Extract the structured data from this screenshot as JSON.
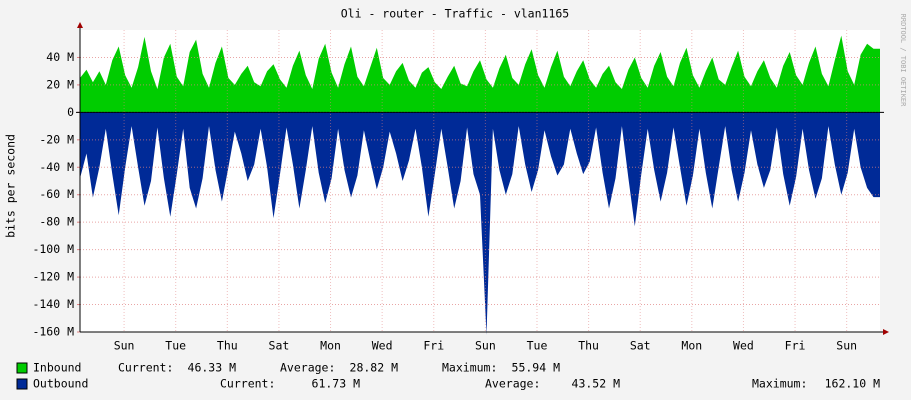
{
  "chart_data": {
    "type": "area",
    "title": "Oli - router - Traffic - vlan1165",
    "ylabel": "bits per second",
    "side_text": "RRDTOOL / TOBI OETIKER",
    "x": [
      0,
      6,
      12,
      18,
      24,
      30,
      36,
      42,
      48,
      54,
      60,
      66,
      72,
      78,
      84,
      90,
      96,
      102,
      108,
      114,
      120,
      126,
      132,
      138,
      144,
      150,
      156,
      162,
      168,
      174,
      180,
      186,
      192,
      198,
      204,
      210,
      216,
      222,
      228,
      234,
      240,
      246,
      252,
      258,
      264,
      270,
      276,
      282,
      288,
      294,
      300,
      306,
      312,
      318,
      324,
      330,
      336,
      342,
      348,
      354,
      360,
      366,
      372,
      378,
      384,
      390,
      396,
      402,
      408,
      414,
      420,
      426,
      432,
      438,
      444,
      450,
      456,
      462,
      468,
      474,
      480,
      486,
      492,
      498,
      504,
      510,
      516,
      522,
      528,
      534,
      540,
      546,
      552,
      558,
      564,
      570,
      576,
      582,
      588,
      594,
      600,
      606,
      612,
      618,
      624,
      630,
      636,
      642,
      648,
      654,
      660,
      666,
      672,
      678,
      684,
      690,
      696,
      702,
      708,
      714,
      720,
      726,
      732,
      738
    ],
    "xlim": [
      0,
      744
    ],
    "xticks": [
      {
        "value": 41,
        "label": "Sun"
      },
      {
        "value": 89,
        "label": "Tue"
      },
      {
        "value": 137,
        "label": "Thu"
      },
      {
        "value": 185,
        "label": "Sat"
      },
      {
        "value": 233,
        "label": "Mon"
      },
      {
        "value": 281,
        "label": "Wed"
      },
      {
        "value": 329,
        "label": "Fri"
      },
      {
        "value": 377,
        "label": "Sun"
      },
      {
        "value": 425,
        "label": "Tue"
      },
      {
        "value": 473,
        "label": "Thu"
      },
      {
        "value": 521,
        "label": "Sat"
      },
      {
        "value": 569,
        "label": "Mon"
      },
      {
        "value": 617,
        "label": "Wed"
      },
      {
        "value": 665,
        "label": "Fri"
      },
      {
        "value": 713,
        "label": "Sun"
      }
    ],
    "ylim": [
      -160,
      60
    ],
    "yticks": [
      {
        "value": 40,
        "label": "40 M"
      },
      {
        "value": 20,
        "label": "20 M"
      },
      0,
      {
        "value": -20,
        "label": "-20 M"
      },
      {
        "value": -40,
        "label": "-40 M"
      },
      {
        "value": -60,
        "label": "-60 M"
      },
      {
        "value": -80,
        "label": "-80 M"
      },
      {
        "value": -100,
        "label": "-100 M"
      },
      {
        "value": -120,
        "label": "-120 M"
      },
      {
        "value": -140,
        "label": "-140 M"
      },
      {
        "value": -160,
        "label": "-160 M"
      }
    ],
    "grid": true,
    "series": [
      {
        "name": "Inbound",
        "color": "#00cc00",
        "stats": [
          {
            "label": "Current:",
            "value": "46.33 M"
          },
          {
            "label": "Average:",
            "value": "28.82 M"
          },
          {
            "label": "Maximum:",
            "value": "55.94 M"
          }
        ],
        "values": [
          25,
          31,
          22,
          30,
          20,
          38,
          48,
          27,
          18,
          33,
          55,
          30,
          17,
          40,
          50,
          26,
          19,
          44,
          53,
          28,
          18,
          36,
          48,
          25,
          20,
          28,
          34,
          22,
          19,
          30,
          35,
          24,
          18,
          34,
          45,
          27,
          17,
          39,
          50,
          29,
          18,
          35,
          48,
          26,
          19,
          33,
          47,
          25,
          20,
          30,
          36,
          23,
          18,
          29,
          33,
          22,
          17,
          26,
          34,
          21,
          19,
          30,
          38,
          24,
          18,
          32,
          42,
          25,
          20,
          35,
          46,
          27,
          18,
          33,
          45,
          26,
          19,
          30,
          38,
          24,
          18,
          28,
          34,
          22,
          17,
          31,
          40,
          25,
          18,
          34,
          44,
          26,
          19,
          36,
          47,
          27,
          18,
          30,
          40,
          24,
          20,
          33,
          45,
          26,
          19,
          30,
          38,
          25,
          18,
          34,
          44,
          27,
          20,
          36,
          48,
          28,
          19,
          38,
          55.94,
          30,
          20,
          42,
          50,
          46.33
        ]
      },
      {
        "name": "Outbound",
        "color": "#002a97",
        "stats": [
          {
            "label": "Current:",
            "value": "61.73 M"
          },
          {
            "label": "Average:",
            "value": "43.52 M"
          },
          {
            "label": "Maximum:",
            "value": "162.10 M"
          }
        ],
        "values": [
          -48,
          -30,
          -62,
          -40,
          -12,
          -45,
          -75,
          -40,
          -10,
          -40,
          -68,
          -50,
          -11,
          -48,
          -76,
          -45,
          -12,
          -55,
          -70,
          -48,
          -10,
          -42,
          -65,
          -40,
          -14,
          -30,
          -50,
          -38,
          -12,
          -40,
          -77,
          -45,
          -11,
          -38,
          -70,
          -42,
          -10,
          -44,
          -66,
          -48,
          -12,
          -42,
          -62,
          -46,
          -13,
          -35,
          -56,
          -40,
          -14,
          -30,
          -50,
          -35,
          -12,
          -40,
          -76,
          -45,
          -12,
          -40,
          -70,
          -50,
          -11,
          -45,
          -60,
          -162.1,
          -12,
          -42,
          -60,
          -45,
          -10,
          -38,
          -58,
          -42,
          -13,
          -32,
          -46,
          -38,
          -12,
          -30,
          -45,
          -36,
          -11,
          -44,
          -70,
          -48,
          -10,
          -48,
          -83,
          -45,
          -12,
          -42,
          -65,
          -44,
          -11,
          -40,
          -68,
          -46,
          -12,
          -44,
          -70,
          -40,
          -10,
          -42,
          -65,
          -44,
          -13,
          -38,
          -55,
          -42,
          -11,
          -45,
          -68,
          -47,
          -12,
          -42,
          -63,
          -48,
          -10,
          -38,
          -60,
          -44,
          -12,
          -40,
          -55,
          -61.73
        ]
      }
    ]
  }
}
